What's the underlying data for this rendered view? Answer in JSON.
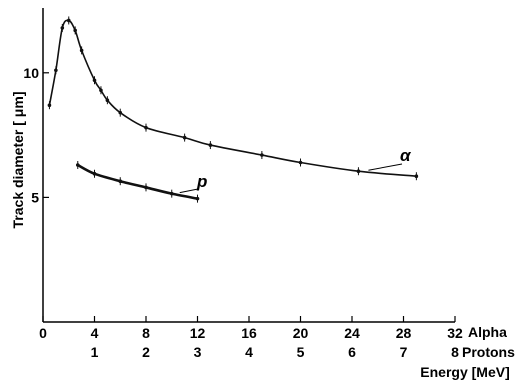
{
  "chart_data": {
    "type": "line",
    "xlabel": "Energy [MeV]",
    "ylabel": "Track diameter [ μm]",
    "x_axes": [
      {
        "name": "Alpha",
        "ticks": [
          "0",
          "4",
          "8",
          "12",
          "16",
          "20",
          "24",
          "28",
          "32"
        ],
        "range": [
          0,
          32
        ]
      },
      {
        "name": "Protons",
        "ticks": [
          "1",
          "2",
          "3",
          "4",
          "5",
          "6",
          "7",
          "8"
        ],
        "range": [
          0,
          8
        ]
      }
    ],
    "y_ticks": [
      "5",
      "10"
    ],
    "ylim": [
      0,
      12.6
    ],
    "grid": false,
    "series": [
      {
        "name": "α",
        "axis": "Alpha",
        "points": [
          [
            0.5,
            8.7
          ],
          [
            1.0,
            10.1
          ],
          [
            1.5,
            11.8
          ],
          [
            2.0,
            12.1
          ],
          [
            2.5,
            11.7
          ],
          [
            3.0,
            10.9
          ],
          [
            4.0,
            9.7
          ],
          [
            4.5,
            9.3
          ],
          [
            5.0,
            8.9
          ],
          [
            6.0,
            8.4
          ],
          [
            8.0,
            7.8
          ],
          [
            11.0,
            7.4
          ],
          [
            13.0,
            7.1
          ],
          [
            17.0,
            6.7
          ],
          [
            20.0,
            6.4
          ],
          [
            24.5,
            6.05
          ],
          [
            29.0,
            5.85
          ]
        ]
      },
      {
        "name": "p",
        "axis": "Alpha",
        "points": [
          [
            2.7,
            6.3
          ],
          [
            4.0,
            5.95
          ],
          [
            6.0,
            5.65
          ],
          [
            8.0,
            5.4
          ],
          [
            10.0,
            5.15
          ],
          [
            12.0,
            4.95
          ]
        ]
      }
    ]
  }
}
